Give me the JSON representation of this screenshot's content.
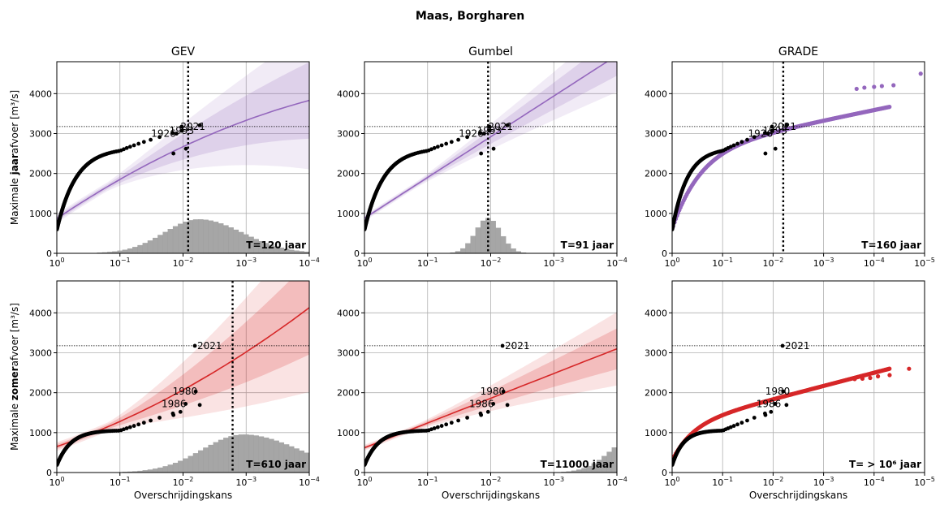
{
  "figure_title": "Maas, Borgharen",
  "chart_data": [
    {
      "type": "scatter",
      "column_title": "GEV",
      "method": "GEV",
      "ylabel": "Maximale jaarafvoer [m³/s]",
      "ylabel_bold": "jaar",
      "xlabel": "",
      "x_scale": "log",
      "xlim": [
        1,
        0.0001
      ],
      "ylim": [
        0,
        4800
      ],
      "return_period_label": "T=120 jaar",
      "vline_exceedance": 0.0083,
      "reference_line": 3175,
      "fit_color": "#9467bd",
      "annotations": [
        {
          "text": "1926",
          "x": 0.035,
          "y": 3000
        },
        {
          "text": "1993",
          "x": 0.018,
          "y": 3070
        },
        {
          "text": "2021",
          "x": 0.012,
          "y": 3175
        }
      ],
      "histogram": {
        "center": 0.0056,
        "peak_count_height": 850,
        "spread_decades": 0.55,
        "skew": 1.25
      }
    },
    {
      "type": "scatter",
      "column_title": "Gumbel",
      "method": "Gumbel",
      "ylabel": "",
      "xlabel": "",
      "x_scale": "log",
      "xlim": [
        1,
        0.0001
      ],
      "ylim": [
        0,
        4800
      ],
      "return_period_label": "T=91 jaar",
      "vline_exceedance": 0.011,
      "reference_line": 3175,
      "fit_color": "#9467bd",
      "annotations": [
        {
          "text": "1926",
          "x": 0.035,
          "y": 3000
        },
        {
          "text": "1993",
          "x": 0.018,
          "y": 3070
        },
        {
          "text": "2021",
          "x": 0.012,
          "y": 3175
        }
      ],
      "histogram": {
        "center": 0.011,
        "peak_count_height": 880,
        "spread_decades": 0.2,
        "skew": 1.0
      }
    },
    {
      "type": "scatter",
      "column_title": "GRADE",
      "method": "GRADE",
      "ylabel": "",
      "xlabel": "",
      "x_scale": "log",
      "xlim": [
        1,
        1e-05
      ],
      "ylim": [
        0,
        4800
      ],
      "return_period_label": "T=160 jaar",
      "vline_exceedance": 0.0063,
      "reference_line": 3175,
      "fit_color": "#9467bd",
      "annotations": [
        {
          "text": "1926",
          "x": 0.035,
          "y": 3000
        },
        {
          "text": "1993",
          "x": 0.018,
          "y": 3070
        },
        {
          "text": "2021",
          "x": 0.012,
          "y": 3175
        }
      ],
      "histogram": null
    },
    {
      "type": "scatter",
      "column_title": "",
      "method": "GEV",
      "ylabel": "Maximale zomerafvoer [m³/s]",
      "ylabel_bold": "zomer",
      "xlabel": "Overschrijdingskans",
      "x_scale": "log",
      "xlim": [
        1,
        0.0001
      ],
      "ylim": [
        0,
        4800
      ],
      "return_period_label": "T=610 jaar",
      "vline_exceedance": 0.00164,
      "reference_line": 3175,
      "fit_color": "#d62728",
      "annotations": [
        {
          "text": "2021",
          "x": 0.0065,
          "y": 3175
        },
        {
          "text": "1980",
          "x": 0.016,
          "y": 2030
        },
        {
          "text": "1986",
          "x": 0.024,
          "y": 1720
        }
      ],
      "histogram": {
        "center": 0.0011,
        "peak_count_height": 950,
        "spread_decades": 0.65,
        "skew": 1.35
      }
    },
    {
      "type": "scatter",
      "column_title": "",
      "method": "Gumbel",
      "ylabel": "",
      "xlabel": "Overschrijdingskans",
      "x_scale": "log",
      "xlim": [
        1,
        0.0001
      ],
      "ylim": [
        0,
        4800
      ],
      "return_period_label": "T=11000 jaar",
      "vline_exceedance": null,
      "reference_line": 3175,
      "fit_color": "#d62728",
      "annotations": [
        {
          "text": "2021",
          "x": 0.0065,
          "y": 3175
        },
        {
          "text": "1980",
          "x": 0.016,
          "y": 2030
        },
        {
          "text": "1986",
          "x": 0.024,
          "y": 1720
        }
      ],
      "histogram": {
        "center": 5e-05,
        "peak_count_height": 900,
        "spread_decades": 0.4,
        "skew": 1.0
      }
    },
    {
      "type": "scatter",
      "column_title": "",
      "method": "GRADE",
      "ylabel": "",
      "xlabel": "Overschrijdingskans",
      "x_scale": "log",
      "xlim": [
        1,
        1e-05
      ],
      "ylim": [
        0,
        4800
      ],
      "return_period_label": "T= > 10⁶ jaar",
      "vline_exceedance": null,
      "reference_line": 3175,
      "fit_color": "#d62728",
      "annotations": [
        {
          "text": "2021",
          "x": 0.0065,
          "y": 3175
        },
        {
          "text": "1980",
          "x": 0.016,
          "y": 2030
        },
        {
          "text": "1986",
          "x": 0.024,
          "y": 1720
        }
      ],
      "histogram": null
    }
  ],
  "y_ticks": [
    0,
    1000,
    2000,
    3000,
    4000
  ]
}
